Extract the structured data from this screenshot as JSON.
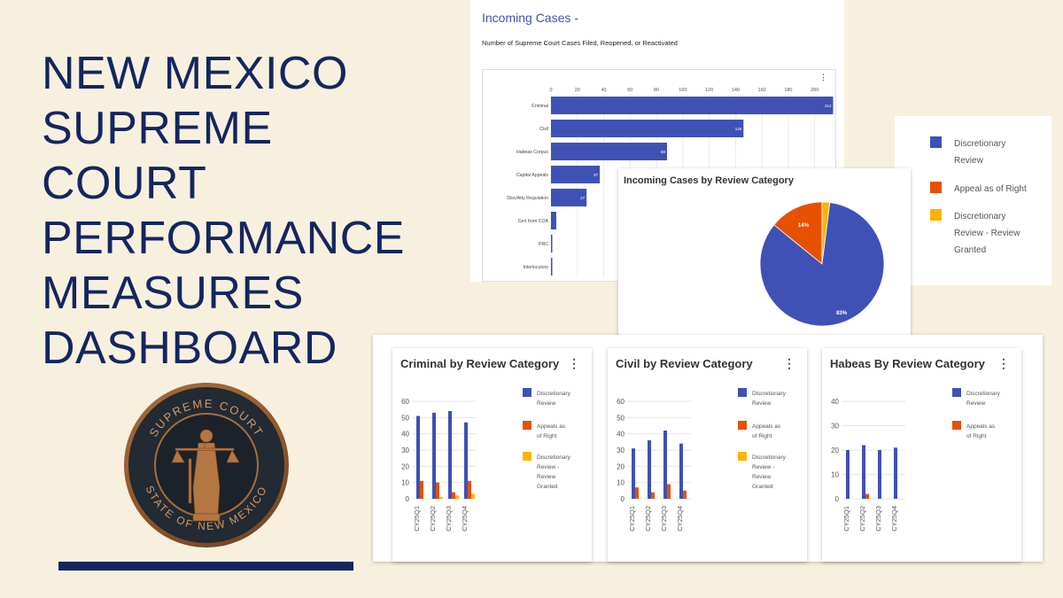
{
  "title": [
    "NEW MEXICO",
    "SUPREME",
    "COURT",
    "PERFORMANCE",
    "MEASURES",
    "DASHBOARD"
  ],
  "seal": {
    "top_text": "SUPREME COURT",
    "bottom_text": "STATE OF NEW MEXICO"
  },
  "incoming": {
    "heading": "Incoming Cases -",
    "subheading": "Number of Supreme Court Cases Filed, Reopened, or Reactivated"
  },
  "pie_panel": {
    "title": "Incoming Cases by Review Category"
  },
  "colors": {
    "discretionary": "#3f51b5",
    "appeal": "#e65100",
    "granted": "#ffb300",
    "navy": "#14265f"
  },
  "legend_top": [
    "Discretionary Review",
    "Appeal as of Right",
    "Discretionary Review - Review Granted"
  ],
  "small_legend": [
    "Discretionary Review",
    "Appeals as of Right",
    "Discretionary Review - Review Granted"
  ],
  "chart_data": [
    {
      "type": "bar",
      "orientation": "horizontal",
      "categories": [
        "Criminal",
        "Civil",
        "Habeas Corpus",
        "Capital Appeals",
        "Disc/Atty Regulation",
        "Cert from COA",
        "PRC",
        "Interlocutory"
      ],
      "values": [
        214,
        146,
        88,
        37,
        27,
        4,
        1,
        1
      ],
      "data_labels": [
        "214",
        "146",
        "88",
        "37",
        "27",
        "",
        "",
        ""
      ],
      "xlim": [
        0,
        215
      ],
      "xticks": [
        0,
        20,
        40,
        60,
        80,
        100,
        120,
        140,
        160,
        180,
        200
      ],
      "grid": true
    },
    {
      "type": "pie",
      "title": "Incoming Cases by Review Category",
      "labels": [
        "Discretionary Review",
        "Appeal as of Right",
        "Discretionary Review - Review Granted"
      ],
      "values": [
        83,
        14,
        2
      ],
      "data_labels": [
        "83%",
        "14%",
        ""
      ],
      "legend": "right"
    },
    {
      "type": "bar",
      "title": "Criminal by Review Category",
      "categories": [
        "CY25Q1",
        "CY25Q2",
        "CY25Q3",
        "CY25Q4"
      ],
      "series": [
        {
          "name": "Discretionary Review",
          "values": [
            51,
            53,
            54,
            47
          ]
        },
        {
          "name": "Appeals as of Right",
          "values": [
            11,
            10,
            4,
            11
          ]
        },
        {
          "name": "Discretionary Review - Review Granted",
          "values": [
            0,
            1,
            2,
            3
          ]
        }
      ],
      "ylim": [
        0,
        60
      ],
      "yticks": [
        0,
        10,
        20,
        30,
        40,
        50,
        60
      ]
    },
    {
      "type": "bar",
      "title": "Civil by Review Category",
      "categories": [
        "CY25Q1",
        "CY25Q2",
        "CY25Q3",
        "CY25Q4"
      ],
      "series": [
        {
          "name": "Discretionary Review",
          "values": [
            31,
            36,
            42,
            34
          ]
        },
        {
          "name": "Appeals as of Right",
          "values": [
            7,
            4,
            9,
            5
          ]
        },
        {
          "name": "Discretionary Review - Review Granted",
          "values": [
            0,
            0,
            0,
            0
          ]
        }
      ],
      "ylim": [
        0,
        60
      ],
      "yticks": [
        0,
        10,
        20,
        30,
        40,
        50,
        60
      ]
    },
    {
      "type": "bar",
      "title": "Habeas By Review Category",
      "categories": [
        "CY25Q1",
        "CY25Q2",
        "CY25Q3",
        "CY25Q4"
      ],
      "series": [
        {
          "name": "Discretionary Review",
          "values": [
            20,
            22,
            20,
            21
          ]
        },
        {
          "name": "Appeals as of Right",
          "values": [
            0,
            2,
            0,
            0
          ]
        }
      ],
      "ylim": [
        0,
        40
      ],
      "yticks": [
        0,
        10,
        20,
        30,
        40
      ]
    }
  ]
}
